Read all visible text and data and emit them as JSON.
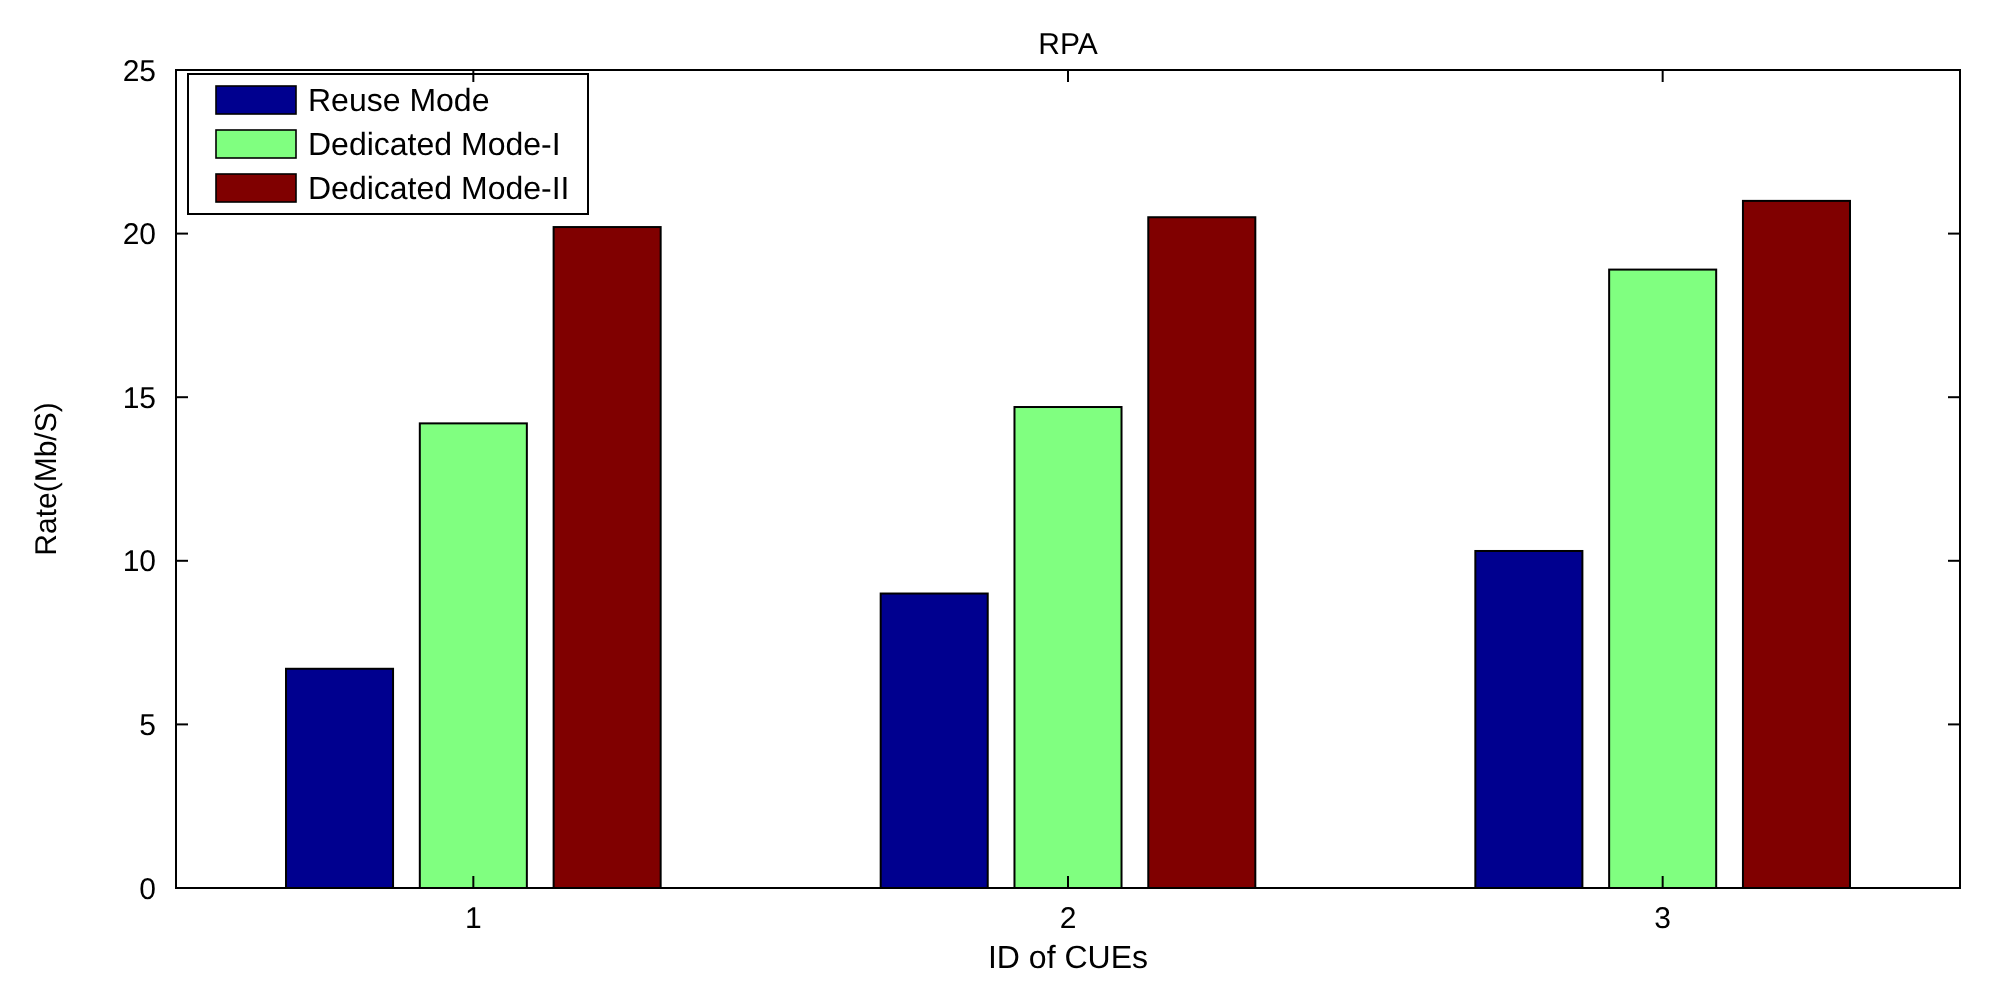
{
  "chart_data": {
    "type": "bar",
    "title": "RPA",
    "xlabel": "ID of CUEs",
    "ylabel": "Rate(Mb/S)",
    "categories": [
      "1",
      "2",
      "3"
    ],
    "series": [
      {
        "name": "Reuse Mode",
        "color": "#00008f",
        "values": [
          6.7,
          9.0,
          10.3
        ]
      },
      {
        "name": "Dedicated Mode-I",
        "color": "#80ff80",
        "values": [
          14.2,
          14.7,
          18.9
        ]
      },
      {
        "name": "Dedicated Mode-II",
        "color": "#800000",
        "values": [
          20.2,
          20.5,
          21.0
        ]
      }
    ],
    "ylim": [
      0,
      25
    ],
    "yticks": [
      0,
      5,
      10,
      15,
      20,
      25
    ],
    "grid": false,
    "legend": "top left"
  }
}
